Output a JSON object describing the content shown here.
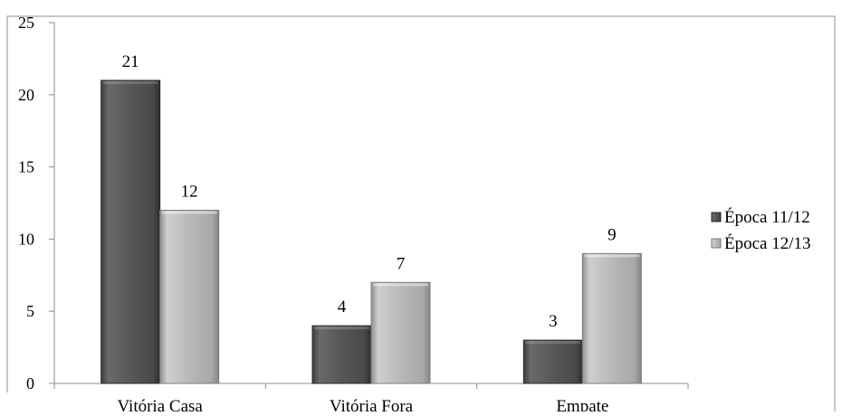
{
  "chart_data": {
    "type": "bar",
    "categories": [
      "Vitória Casa",
      "Vitória Fora",
      "Empate"
    ],
    "series": [
      {
        "name": "Época 11/12",
        "values": [
          21,
          4,
          3
        ],
        "color": "#555555"
      },
      {
        "name": "Época 12/13",
        "values": [
          12,
          7,
          9
        ],
        "color": "#b3b3b3"
      }
    ],
    "ylim": [
      0,
      25
    ],
    "yticks": [
      0,
      5,
      10,
      15,
      20,
      25
    ],
    "grid": false,
    "legend_position": "right"
  }
}
